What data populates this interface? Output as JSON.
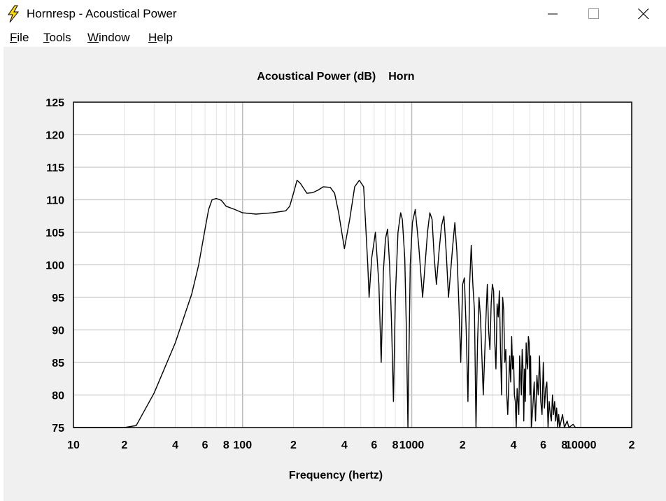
{
  "window": {
    "title": "Hornresp - Acoustical Power"
  },
  "menu": [
    {
      "label": "File",
      "underline": "F",
      "rest": "ile"
    },
    {
      "label": "Tools",
      "underline": "T",
      "rest": "ools"
    },
    {
      "label": "Window",
      "underline": "W",
      "rest": "indow"
    },
    {
      "label": "Help",
      "underline": "H",
      "rest": "elp"
    }
  ],
  "colors": {
    "plot_bg": "#ffffff",
    "client_bg": "#f0f0f0",
    "grid": "#c8c8c8",
    "line": "#000000",
    "icon": "#ffd800"
  },
  "chart_data": {
    "type": "line",
    "title": "Acoustical Power (dB)",
    "subtitle": "Horn",
    "xlabel": "Frequency (hertz)",
    "ylabel": "",
    "xscale": "log",
    "xlim": [
      10,
      20000
    ],
    "ylim": [
      75,
      125
    ],
    "grid": true,
    "yticks": [
      125,
      120,
      115,
      110,
      105,
      100,
      95,
      90,
      85,
      80,
      75
    ],
    "xtick_labels": [
      {
        "value": 10,
        "label": "10"
      },
      {
        "value": 20,
        "label": "2"
      },
      {
        "value": 40,
        "label": "4"
      },
      {
        "value": 60,
        "label": "6"
      },
      {
        "value": 80,
        "label": "8"
      },
      {
        "value": 100,
        "label": "100"
      },
      {
        "value": 200,
        "label": "2"
      },
      {
        "value": 400,
        "label": "4"
      },
      {
        "value": 600,
        "label": "6"
      },
      {
        "value": 800,
        "label": "8"
      },
      {
        "value": 1000,
        "label": "1000"
      },
      {
        "value": 2000,
        "label": "2"
      },
      {
        "value": 4000,
        "label": "4"
      },
      {
        "value": 6000,
        "label": "6"
      },
      {
        "value": 8000,
        "label": "8"
      },
      {
        "value": 10000,
        "label": "10000"
      },
      {
        "value": 20000,
        "label": "2"
      }
    ],
    "series": [
      {
        "points": [
          [
            10,
            75
          ],
          [
            20,
            75
          ],
          [
            23.5,
            75.3
          ],
          [
            30,
            80.3
          ],
          [
            40,
            88
          ],
          [
            50,
            95.5
          ],
          [
            55,
            100
          ],
          [
            60,
            105.5
          ],
          [
            63,
            108.5
          ],
          [
            66,
            110
          ],
          [
            70,
            110.2
          ],
          [
            75,
            109.9
          ],
          [
            80,
            109
          ],
          [
            90,
            108.5
          ],
          [
            100,
            108
          ],
          [
            120,
            107.8
          ],
          [
            150,
            108
          ],
          [
            180,
            108.3
          ],
          [
            190,
            109
          ],
          [
            200,
            111
          ],
          [
            210,
            113
          ],
          [
            220,
            112.5
          ],
          [
            240,
            111
          ],
          [
            260,
            111.1
          ],
          [
            280,
            111.5
          ],
          [
            300,
            112
          ],
          [
            330,
            111.9
          ],
          [
            350,
            111
          ],
          [
            370,
            108
          ],
          [
            400,
            102.5
          ],
          [
            430,
            107
          ],
          [
            460,
            112
          ],
          [
            490,
            113
          ],
          [
            520,
            112
          ],
          [
            550,
            100
          ],
          [
            560,
            95
          ],
          [
            580,
            101
          ],
          [
            610,
            105
          ],
          [
            640,
            97
          ],
          [
            660,
            85
          ],
          [
            680,
            99
          ],
          [
            700,
            104
          ],
          [
            720,
            105.5
          ],
          [
            740,
            100
          ],
          [
            760,
            91
          ],
          [
            780,
            79
          ],
          [
            800,
            95
          ],
          [
            830,
            105
          ],
          [
            860,
            108
          ],
          [
            880,
            107
          ],
          [
            910,
            101
          ],
          [
            930,
            90
          ],
          [
            950,
            75
          ],
          [
            980,
            100
          ],
          [
            1010,
            106.5
          ],
          [
            1050,
            108.5
          ],
          [
            1100,
            103
          ],
          [
            1130,
            99
          ],
          [
            1160,
            95
          ],
          [
            1200,
            100
          ],
          [
            1240,
            105
          ],
          [
            1280,
            108
          ],
          [
            1320,
            107
          ],
          [
            1360,
            101
          ],
          [
            1400,
            97
          ],
          [
            1450,
            102
          ],
          [
            1500,
            106
          ],
          [
            1550,
            107.5
          ],
          [
            1600,
            102
          ],
          [
            1650,
            95
          ],
          [
            1700,
            99
          ],
          [
            1750,
            103
          ],
          [
            1800,
            106.5
          ],
          [
            1850,
            102
          ],
          [
            1900,
            94
          ],
          [
            1950,
            85
          ],
          [
            2000,
            97
          ],
          [
            2050,
            98
          ],
          [
            2100,
            90
          ],
          [
            2150,
            79
          ],
          [
            2200,
            97
          ],
          [
            2250,
            103
          ],
          [
            2300,
            97
          ],
          [
            2350,
            93
          ],
          [
            2400,
            75
          ],
          [
            2450,
            88
          ],
          [
            2500,
            95
          ],
          [
            2550,
            92
          ],
          [
            2600,
            86
          ],
          [
            2650,
            80
          ],
          [
            2700,
            86
          ],
          [
            2750,
            92
          ],
          [
            2800,
            97
          ],
          [
            2850,
            90
          ],
          [
            2900,
            87
          ],
          [
            2950,
            94
          ],
          [
            3000,
            97
          ],
          [
            3050,
            96
          ],
          [
            3100,
            88
          ],
          [
            3150,
            84
          ],
          [
            3200,
            94
          ],
          [
            3250,
            92
          ],
          [
            3300,
            96
          ],
          [
            3350,
            87
          ],
          [
            3400,
            80
          ],
          [
            3450,
            95
          ],
          [
            3500,
            93
          ],
          [
            3550,
            85
          ],
          [
            3600,
            87
          ],
          [
            3650,
            80
          ],
          [
            3700,
            77
          ],
          [
            3800,
            86
          ],
          [
            3850,
            82
          ],
          [
            3900,
            89
          ],
          [
            3950,
            84
          ],
          [
            4000,
            86
          ],
          [
            4050,
            80
          ],
          [
            4100,
            79
          ],
          [
            4150,
            75
          ],
          [
            4200,
            81
          ],
          [
            4300,
            77
          ],
          [
            4350,
            86
          ],
          [
            4400,
            83
          ],
          [
            4450,
            80
          ],
          [
            4500,
            87
          ],
          [
            4550,
            84
          ],
          [
            4600,
            76
          ],
          [
            4650,
            84
          ],
          [
            4700,
            79
          ],
          [
            4750,
            88
          ],
          [
            4800,
            85
          ],
          [
            4850,
            84
          ],
          [
            4900,
            89
          ],
          [
            4950,
            88
          ],
          [
            5000,
            80
          ],
          [
            5050,
            86
          ],
          [
            5100,
            75
          ],
          [
            5200,
            78
          ],
          [
            5300,
            82
          ],
          [
            5400,
            76
          ],
          [
            5500,
            83
          ],
          [
            5600,
            80
          ],
          [
            5700,
            86
          ],
          [
            5800,
            79
          ],
          [
            5900,
            77
          ],
          [
            6000,
            85
          ],
          [
            6100,
            78
          ],
          [
            6200,
            81
          ],
          [
            6300,
            82
          ],
          [
            6400,
            75
          ],
          [
            6500,
            79
          ],
          [
            6600,
            77
          ],
          [
            6700,
            76
          ],
          [
            6800,
            80
          ],
          [
            6900,
            77
          ],
          [
            7000,
            79
          ],
          [
            7100,
            76
          ],
          [
            7200,
            78
          ],
          [
            7300,
            75
          ],
          [
            7400,
            77
          ],
          [
            7500,
            75
          ],
          [
            7800,
            77
          ],
          [
            8000,
            75
          ],
          [
            8300,
            76
          ],
          [
            8500,
            75
          ],
          [
            9000,
            75.5
          ],
          [
            9300,
            75
          ],
          [
            12000,
            75
          ],
          [
            20000,
            75
          ]
        ]
      }
    ]
  }
}
